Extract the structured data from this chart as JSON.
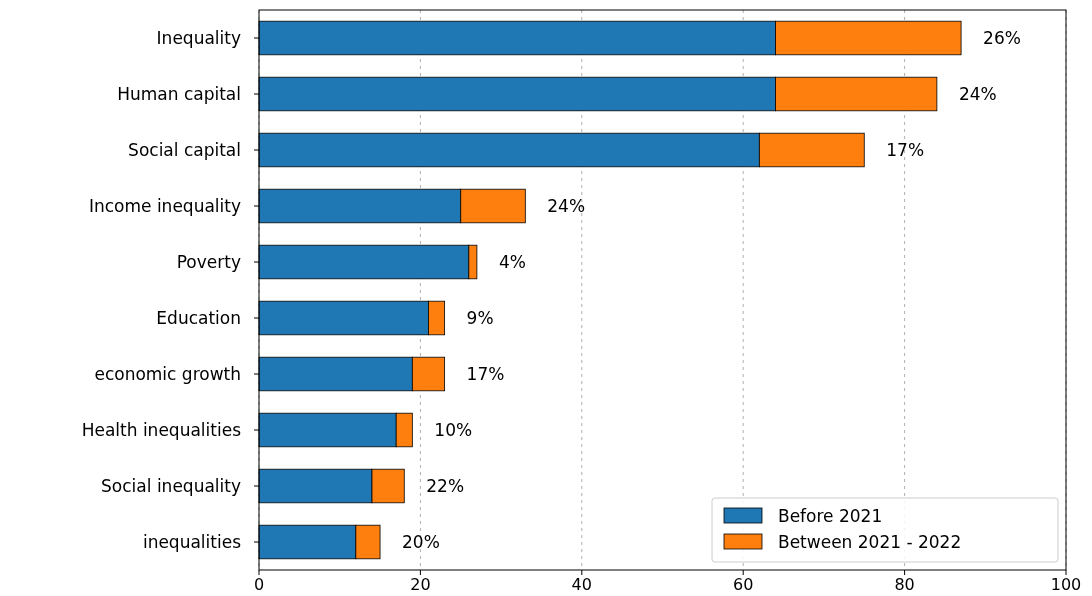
{
  "chart_data": {
    "type": "bar",
    "orientation": "horizontal",
    "stacked": true,
    "categories": [
      "Inequality",
      "Human capital",
      "Social capital",
      "Income inequality",
      "Poverty",
      "Education",
      "economic growth",
      "Health inequalities",
      "Social inequality",
      "inequalities"
    ],
    "series": [
      {
        "name": "Before 2021",
        "color": "#1f77b4",
        "values": [
          64,
          64,
          62,
          25,
          26,
          21,
          19,
          17,
          14,
          12
        ]
      },
      {
        "name": "Between 2021 - 2022",
        "color": "#ff7f0e",
        "values": [
          23,
          20,
          13,
          8,
          1,
          2,
          4,
          2,
          4,
          3
        ]
      }
    ],
    "annotations": [
      {
        "text": "26%",
        "x": 87,
        "y": "Inequality"
      },
      {
        "text": "24%",
        "x": 84,
        "y": "Human capital"
      },
      {
        "text": "17%",
        "x": 75,
        "y": "Social capital"
      },
      {
        "text": "24%",
        "x": 33,
        "y": "Income inequality"
      },
      {
        "text": "4%",
        "x": 27,
        "y": "Poverty"
      },
      {
        "text": "9%",
        "x": 23,
        "y": "Education"
      },
      {
        "text": "17%",
        "x": 23,
        "y": "economic growth"
      },
      {
        "text": "10%",
        "x": 19,
        "y": "Health inequalities"
      },
      {
        "text": "22%",
        "x": 18,
        "y": "Social inequality"
      },
      {
        "text": "20%",
        "x": 15,
        "y": "inequalities"
      }
    ],
    "xlim": [
      0,
      100
    ],
    "xticks": [
      0,
      20,
      40,
      60,
      80,
      100
    ],
    "grid": "x",
    "legend": "bottom right"
  }
}
